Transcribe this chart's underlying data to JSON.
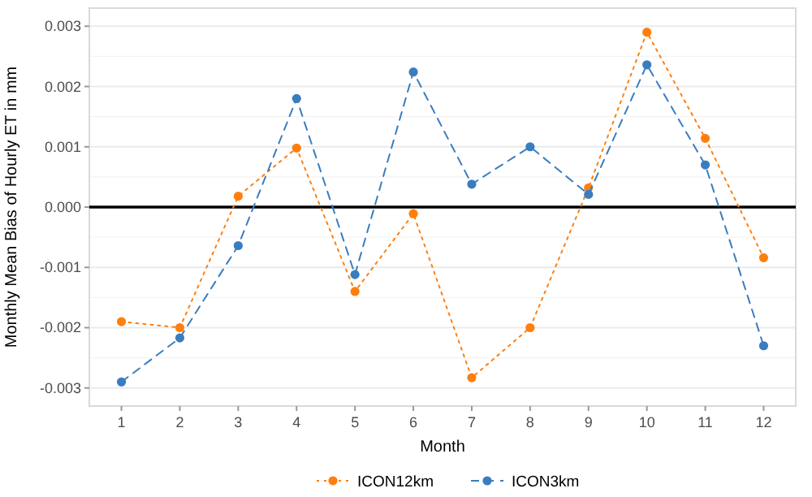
{
  "chart_data": {
    "type": "line",
    "xlabel": "Month",
    "ylabel": "Monthly Mean Bias of Hourly ET in mm",
    "x": [
      1,
      2,
      3,
      4,
      5,
      6,
      7,
      8,
      9,
      10,
      11,
      12
    ],
    "series": [
      {
        "name": "ICON12km",
        "color": "#ff7f0e",
        "line_style": "dotted",
        "values": [
          -0.0019,
          -0.002,
          0.00018,
          0.00098,
          -0.0014,
          -0.00011,
          -0.00283,
          -0.002,
          0.00032,
          0.0029,
          0.00114,
          -0.00084
        ]
      },
      {
        "name": "ICON3km",
        "color": "#3a7dbf",
        "line_style": "dashed",
        "values": [
          -0.0029,
          -0.00217,
          -0.00064,
          0.0018,
          -0.00112,
          0.00224,
          0.00038,
          0.001,
          0.00021,
          0.00236,
          0.0007,
          -0.0023
        ]
      }
    ],
    "xlim": [
      0.45,
      12.55
    ],
    "xticks": [
      1,
      2,
      3,
      4,
      5,
      6,
      7,
      8,
      9,
      10,
      11,
      12
    ],
    "ylim": [
      -0.0033,
      0.0033
    ],
    "yticks": [
      {
        "value": -0.003,
        "label": "-0.003"
      },
      {
        "value": -0.002,
        "label": "-0.002"
      },
      {
        "value": -0.001,
        "label": "-0.001"
      },
      {
        "value": 0,
        "label": "0.000"
      },
      {
        "value": 0.001,
        "label": "0.001"
      },
      {
        "value": 0.002,
        "label": "0.002"
      },
      {
        "value": 0.003,
        "label": "0.003"
      }
    ],
    "ref_lines": [
      {
        "axis": "y",
        "value": 0,
        "color": "#000000"
      }
    ],
    "grid": "y",
    "legend": "bottom",
    "marker": "circle"
  }
}
